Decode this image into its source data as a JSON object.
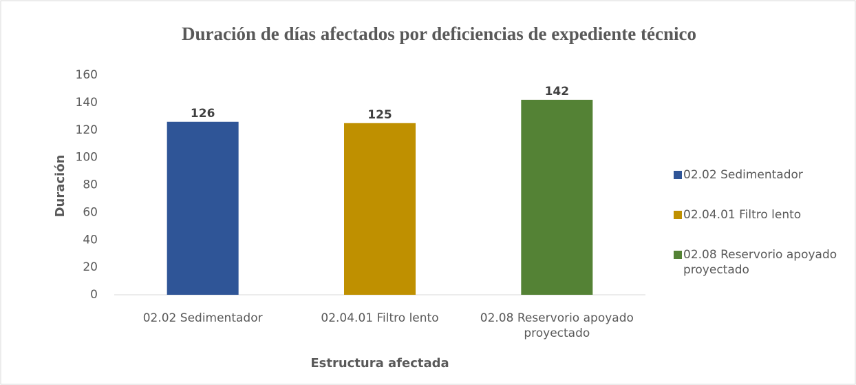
{
  "chart_data": {
    "type": "bar",
    "title": "Duración de días afectados por deficiencias de expediente técnico",
    "x_label": "Estructura afectada",
    "y_label": "Duración",
    "categories": [
      "02.02 Sedimentador",
      "02.04.01 Filtro lento",
      "02.08 Reservorio apoyado proyectado"
    ],
    "values": [
      126,
      125,
      142
    ],
    "colors": [
      "#2f5597",
      "#bf9000",
      "#548235"
    ],
    "ylim": [
      0,
      160
    ],
    "yticks": [
      0,
      20,
      40,
      60,
      80,
      100,
      120,
      140,
      160
    ],
    "grid": false,
    "legend": "right"
  }
}
